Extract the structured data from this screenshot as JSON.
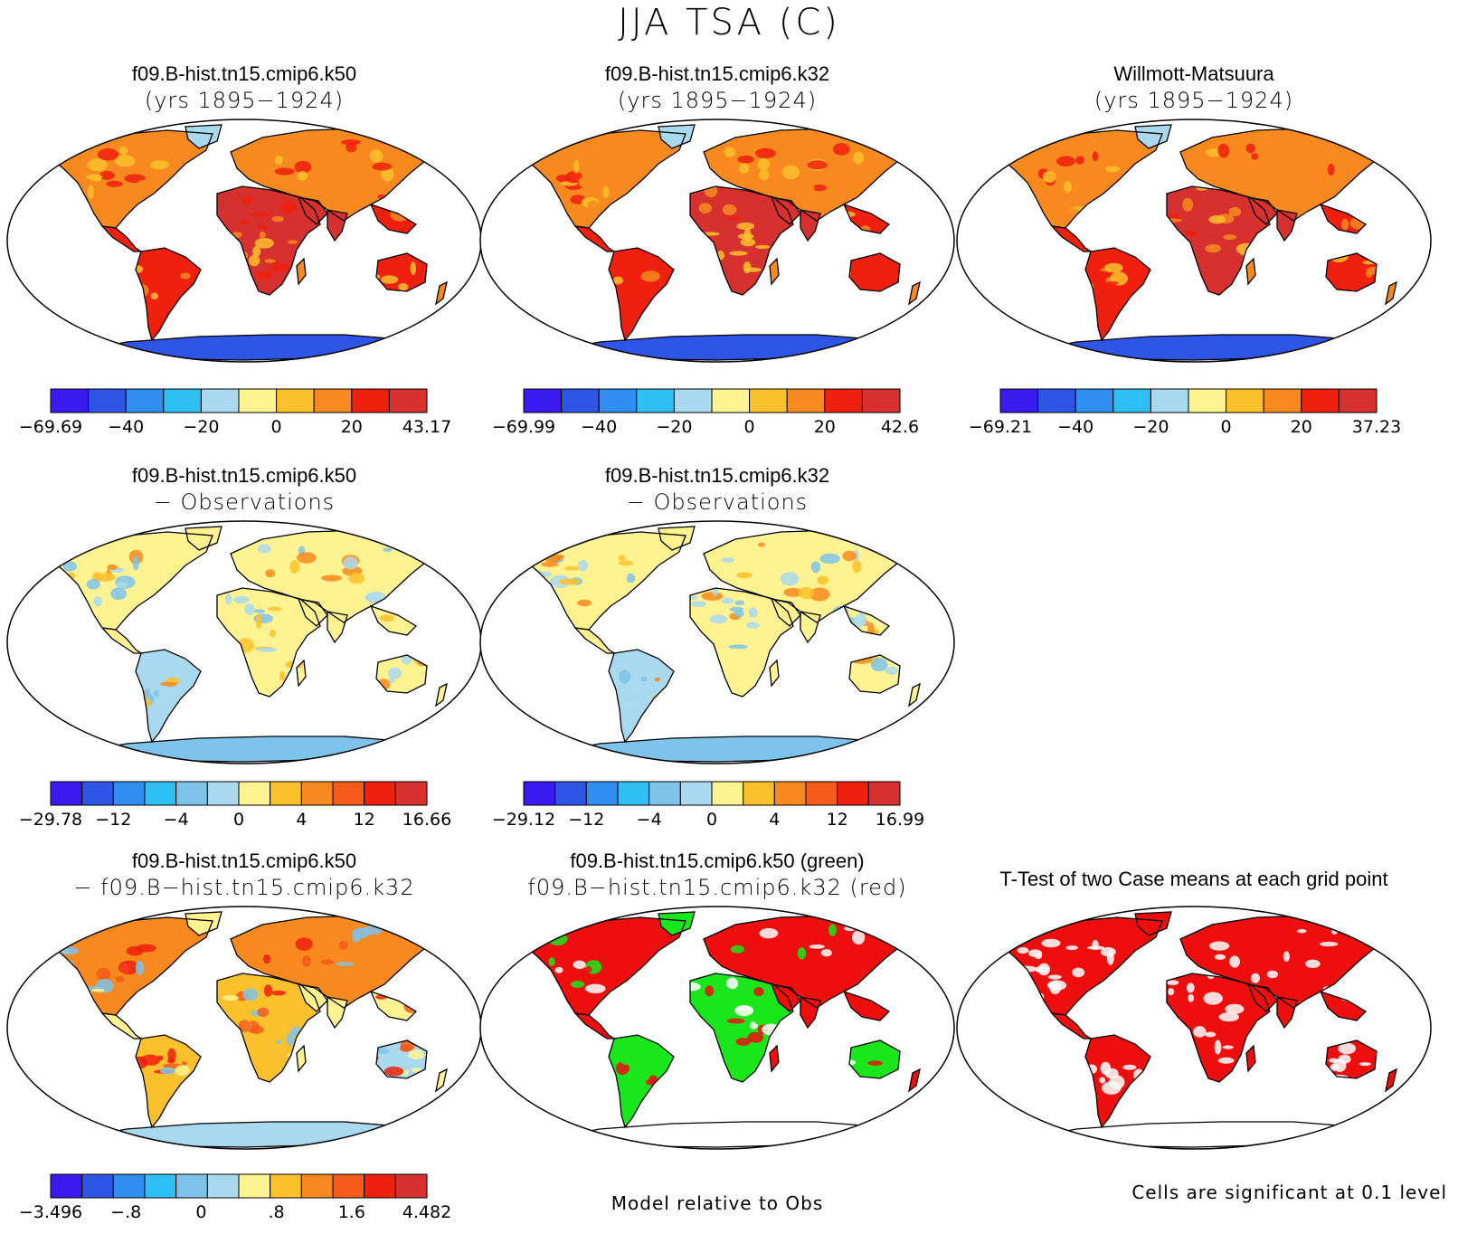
{
  "title": "JJA TSA (C)",
  "colors": {
    "scale10": [
      "#3a1af0",
      "#2f55e6",
      "#2f8ef0",
      "#2fbff2",
      "#a9d9ee",
      "#fff391",
      "#fbc12c",
      "#f7891e",
      "#f0200e",
      "#d6312f"
    ],
    "scale12": [
      "#3a1af0",
      "#2f55e6",
      "#2f8ef0",
      "#2fbff2",
      "#7ec3ea",
      "#a9d9ee",
      "#fff391",
      "#fbc12c",
      "#f7891e",
      "#f55c1a",
      "#f0200e",
      "#d6312f"
    ],
    "green": "#19e61b",
    "red": "#ee0e0e"
  },
  "panels": [
    {
      "id": "k50",
      "title": "f09.B-hist.tn15.cmip6.k50",
      "subtitle": "(yrs 1895−1924)",
      "style": "abs"
    },
    {
      "id": "k32",
      "title": "f09.B-hist.tn15.cmip6.k32",
      "subtitle": "(yrs 1895−1924)",
      "style": "abs"
    },
    {
      "id": "obs",
      "title": "Willmott-Matsuura",
      "subtitle": "(yrs 1895−1924)",
      "style": "abs"
    },
    {
      "id": "k50-obs",
      "title": "f09.B-hist.tn15.cmip6.k50",
      "subtitle": "− Observations",
      "style": "bias"
    },
    {
      "id": "k32-obs",
      "title": "f09.B-hist.tn15.cmip6.k32",
      "subtitle": "− Observations",
      "style": "bias"
    },
    {
      "id": "k50-k32",
      "title": "f09.B-hist.tn15.cmip6.k50",
      "subtitle": "− f09.B−hist.tn15.cmip6.k32",
      "style": "diff"
    },
    {
      "id": "relative",
      "title": "f09.B-hist.tn15.cmip6.k50 (green)",
      "subtitle": "f09.B−hist.tn15.cmip6.k32 (red)",
      "style": "green-red"
    },
    {
      "id": "ttest",
      "title": "T-Test of two Case means at each grid point",
      "subtitle": "",
      "style": "sig"
    }
  ],
  "colorbars": [
    {
      "panel": "k50",
      "boxes": 10,
      "labels": [
        "−69.69",
        "−40",
        "−20",
        "0",
        "20",
        "43.17"
      ]
    },
    {
      "panel": "k32",
      "boxes": 10,
      "labels": [
        "−69.99",
        "−40",
        "−20",
        "0",
        "20",
        "42.6"
      ]
    },
    {
      "panel": "obs",
      "boxes": 10,
      "labels": [
        "−69.21",
        "−40",
        "−20",
        "0",
        "20",
        "37.23"
      ]
    },
    {
      "panel": "k50-obs",
      "boxes": 12,
      "labels": [
        "−29.78",
        "−12",
        "−4",
        "0",
        "4",
        "12",
        "16.66"
      ]
    },
    {
      "panel": "k32-obs",
      "boxes": 12,
      "labels": [
        "−29.12",
        "−12",
        "−4",
        "0",
        "4",
        "12",
        "16.99"
      ]
    },
    {
      "panel": "k50-k32",
      "boxes": 12,
      "labels": [
        "−3.496",
        "−.8",
        "0",
        ".8",
        "1.6",
        "4.482"
      ]
    }
  ],
  "notes": {
    "relative": "Model relative to Obs",
    "ttest": "Cells are significant at 0.1 level"
  },
  "chart_data": {
    "type": "heatmap",
    "title": "JJA TSA (C)",
    "variable": "TSA",
    "season": "JJA",
    "units": "C",
    "projection": "Robinson",
    "maps": [
      {
        "panel": "f09.B-hist.tn15.cmip6.k50 (yrs 1895−1924)",
        "min": -69.69,
        "max": 43.17,
        "levels": [
          -40,
          -20,
          0,
          20
        ]
      },
      {
        "panel": "f09.B-hist.tn15.cmip6.k32 (yrs 1895−1924)",
        "min": -69.99,
        "max": 42.6,
        "levels": [
          -40,
          -20,
          0,
          20
        ]
      },
      {
        "panel": "Willmott-Matsuura (yrs 1895−1924)",
        "min": -69.21,
        "max": 37.23,
        "levels": [
          -40,
          -20,
          0,
          20
        ]
      },
      {
        "panel": "f09.B-hist.tn15.cmip6.k50 − Observations",
        "min": -29.78,
        "max": 16.66,
        "levels": [
          -12,
          -4,
          0,
          4,
          12
        ]
      },
      {
        "panel": "f09.B-hist.tn15.cmip6.k32 − Observations",
        "min": -29.12,
        "max": 16.99,
        "levels": [
          -12,
          -4,
          0,
          4,
          12
        ]
      },
      {
        "panel": "f09.B-hist.tn15.cmip6.k50 − f09.B−hist.tn15.cmip6.k32",
        "min": -3.496,
        "max": 4.482,
        "levels": [
          -0.8,
          0,
          0.8,
          1.6
        ]
      },
      {
        "panel": "f09.B-hist.tn15.cmip6.k50 (green) f09.B−hist.tn15.cmip6.k32 (red)",
        "categorical": [
          "green",
          "red"
        ]
      },
      {
        "panel": "T-Test of two Case means at each grid point",
        "categorical": [
          "significant (red)",
          "not significant (white)"
        ]
      }
    ]
  }
}
